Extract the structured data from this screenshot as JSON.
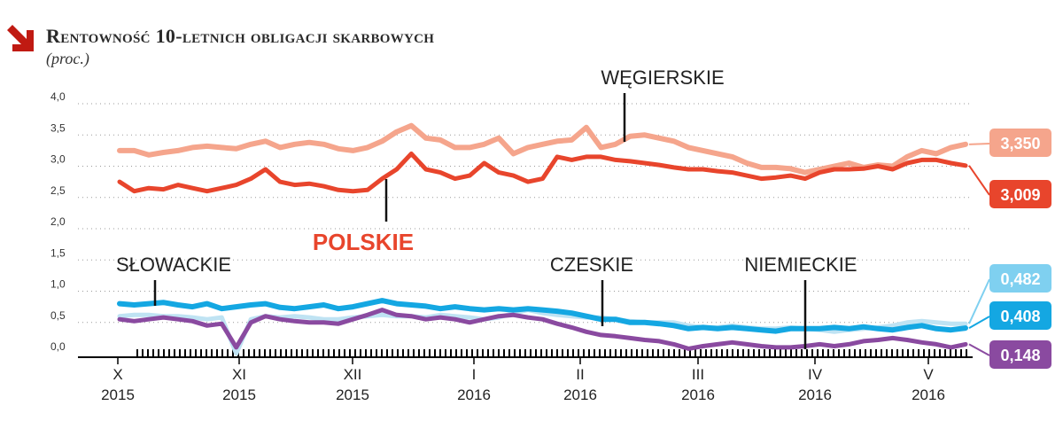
{
  "chart_data": {
    "type": "line",
    "title": "Rentowność 10-letnich obligacji skarbowych",
    "subtitle": "(proc.)",
    "y_ticks": [
      "4,0",
      "3,5",
      "3,0",
      "2,5",
      "2,0",
      "1,5",
      "1,0",
      "0,5",
      "0,0"
    ],
    "ylim": [
      0,
      4.0
    ],
    "grid": "dotted horizontal",
    "x_ticks": [
      {
        "month": "X",
        "year": "2015"
      },
      {
        "month": "XI",
        "year": "2015"
      },
      {
        "month": "XII",
        "year": "2015"
      },
      {
        "month": "I",
        "year": "2016"
      },
      {
        "month": "II",
        "year": "2016"
      },
      {
        "month": "III",
        "year": "2016"
      },
      {
        "month": "IV",
        "year": "2016"
      },
      {
        "month": "V",
        "year": "2016"
      }
    ],
    "series": [
      {
        "name": "WĘGIERSKIE",
        "color": "#f5a58c",
        "end_label": "3,350",
        "values": [
          3.25,
          3.25,
          3.18,
          3.22,
          3.25,
          3.3,
          3.32,
          3.3,
          3.28,
          3.35,
          3.4,
          3.3,
          3.35,
          3.38,
          3.35,
          3.28,
          3.25,
          3.3,
          3.4,
          3.55,
          3.65,
          3.45,
          3.42,
          3.3,
          3.3,
          3.35,
          3.45,
          3.2,
          3.3,
          3.35,
          3.4,
          3.42,
          3.62,
          3.3,
          3.35,
          3.48,
          3.5,
          3.45,
          3.4,
          3.3,
          3.25,
          3.2,
          3.15,
          3.05,
          2.98,
          2.98,
          2.96,
          2.9,
          2.95,
          3.0,
          3.05,
          2.98,
          3.02,
          3.0,
          3.15,
          3.25,
          3.2,
          3.3,
          3.35
        ]
      },
      {
        "name": "POLSKIE",
        "color": "#e8452c",
        "end_label": "3,009",
        "values": [
          2.75,
          2.6,
          2.65,
          2.63,
          2.7,
          2.65,
          2.6,
          2.65,
          2.7,
          2.8,
          2.95,
          2.75,
          2.7,
          2.72,
          2.68,
          2.62,
          2.6,
          2.62,
          2.8,
          2.95,
          3.2,
          2.95,
          2.9,
          2.8,
          2.85,
          3.05,
          2.9,
          2.85,
          2.75,
          2.8,
          3.15,
          3.1,
          3.15,
          3.15,
          3.1,
          3.08,
          3.05,
          3.02,
          2.98,
          2.95,
          2.95,
          2.92,
          2.9,
          2.85,
          2.8,
          2.82,
          2.85,
          2.8,
          2.9,
          2.95,
          2.95,
          2.96,
          3.0,
          2.95,
          3.05,
          3.1,
          3.1,
          3.05,
          3.01
        ]
      },
      {
        "name": "SŁOWACKIE",
        "color": "#14a7e2",
        "end_label": "0,408",
        "values": [
          0.8,
          0.78,
          0.8,
          0.82,
          0.78,
          0.75,
          0.8,
          0.72,
          0.75,
          0.78,
          0.8,
          0.74,
          0.72,
          0.75,
          0.78,
          0.72,
          0.75,
          0.8,
          0.85,
          0.8,
          0.78,
          0.76,
          0.72,
          0.75,
          0.72,
          0.7,
          0.72,
          0.7,
          0.72,
          0.7,
          0.68,
          0.65,
          0.6,
          0.55,
          0.55,
          0.5,
          0.5,
          0.48,
          0.45,
          0.4,
          0.42,
          0.4,
          0.42,
          0.4,
          0.38,
          0.36,
          0.4,
          0.4,
          0.4,
          0.42,
          0.4,
          0.43,
          0.4,
          0.38,
          0.42,
          0.45,
          0.4,
          0.38,
          0.41
        ]
      },
      {
        "name": "CZESKIE",
        "color": "#bfe3f3",
        "end_label": "0,482",
        "values": [
          0.6,
          0.62,
          0.62,
          0.6,
          0.6,
          0.58,
          0.55,
          0.58,
          0.0,
          0.55,
          0.6,
          0.58,
          0.6,
          0.58,
          0.55,
          0.55,
          0.58,
          0.6,
          0.62,
          0.6,
          0.6,
          0.58,
          0.62,
          0.6,
          0.58,
          0.55,
          0.58,
          0.65,
          0.7,
          0.65,
          0.62,
          0.6,
          0.58,
          0.58,
          0.55,
          0.52,
          0.5,
          0.5,
          0.5,
          0.45,
          0.42,
          0.42,
          0.45,
          0.42,
          0.4,
          0.4,
          0.42,
          0.4,
          0.38,
          0.35,
          0.38,
          0.4,
          0.42,
          0.45,
          0.5,
          0.52,
          0.5,
          0.48,
          0.48
        ]
      },
      {
        "name": "NIEMIECKIE",
        "color": "#8a4aa0",
        "end_label": "0,148",
        "values": [
          0.55,
          0.52,
          0.55,
          0.58,
          0.55,
          0.52,
          0.45,
          0.48,
          0.1,
          0.5,
          0.6,
          0.55,
          0.52,
          0.5,
          0.5,
          0.48,
          0.55,
          0.62,
          0.7,
          0.62,
          0.6,
          0.55,
          0.58,
          0.55,
          0.5,
          0.55,
          0.6,
          0.62,
          0.58,
          0.55,
          0.48,
          0.42,
          0.35,
          0.3,
          0.28,
          0.25,
          0.22,
          0.2,
          0.15,
          0.08,
          0.12,
          0.15,
          0.18,
          0.15,
          0.12,
          0.1,
          0.1,
          0.12,
          0.15,
          0.12,
          0.15,
          0.2,
          0.22,
          0.25,
          0.22,
          0.18,
          0.15,
          0.1,
          0.15
        ]
      }
    ]
  }
}
